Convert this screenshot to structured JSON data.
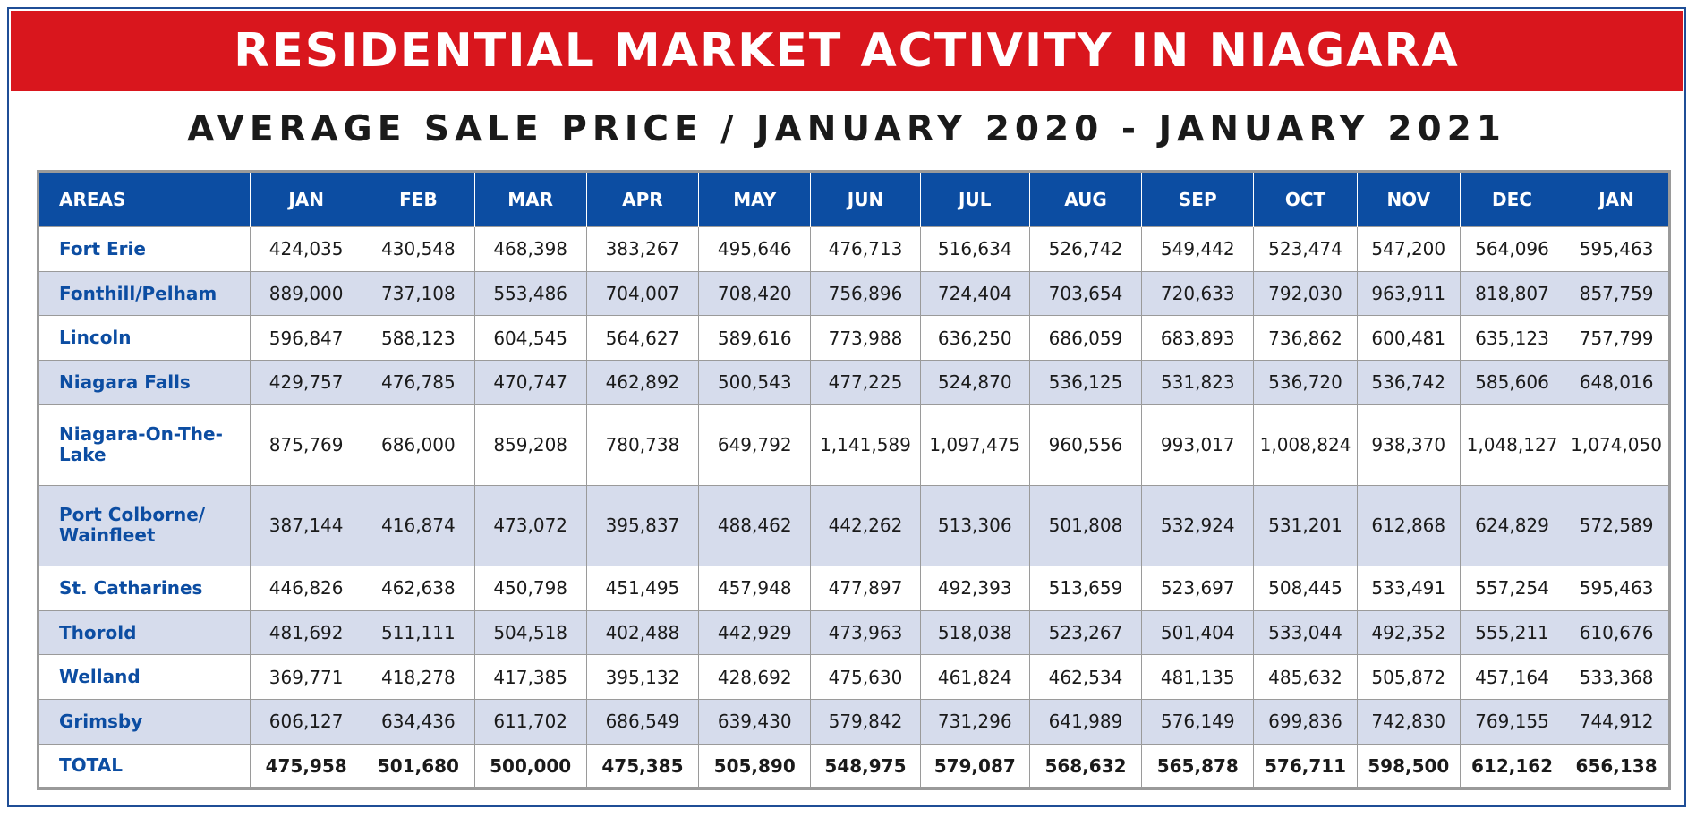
{
  "banner": {
    "title": "RESIDENTIAL MARKET ACTIVITY IN NIAGARA"
  },
  "subtitle": "AVERAGE SALE PRICE / JANUARY 2020 - JANUARY 2021",
  "colors": {
    "banner": "#d9161d",
    "header": "#0c4da2",
    "alt_row": "#d6dcec",
    "area_text": "#0c4da2"
  },
  "table": {
    "headers": [
      "AREAS",
      "JAN",
      "FEB",
      "MAR",
      "APR",
      "MAY",
      "JUN",
      "JUL",
      "AUG",
      "SEP",
      "OCT",
      "NOV",
      "DEC",
      "JAN"
    ],
    "rows": [
      {
        "area": "Fort Erie",
        "values": [
          "424,035",
          "430,548",
          "468,398",
          "383,267",
          "495,646",
          "476,713",
          "516,634",
          "526,742",
          "549,442",
          "523,474",
          "547,200",
          "564,096",
          "595,463"
        ]
      },
      {
        "area": "Fonthill/Pelham",
        "values": [
          "889,000",
          "737,108",
          "553,486",
          "704,007",
          "708,420",
          "756,896",
          "724,404",
          "703,654",
          "720,633",
          "792,030",
          "963,911",
          "818,807",
          "857,759"
        ]
      },
      {
        "area": "Lincoln",
        "values": [
          "596,847",
          "588,123",
          "604,545",
          "564,627",
          "589,616",
          "773,988",
          "636,250",
          "686,059",
          "683,893",
          "736,862",
          "600,481",
          "635,123",
          "757,799"
        ]
      },
      {
        "area": "Niagara Falls",
        "values": [
          "429,757",
          "476,785",
          "470,747",
          "462,892",
          "500,543",
          "477,225",
          "524,870",
          "536,125",
          "531,823",
          "536,720",
          "536,742",
          "585,606",
          "648,016"
        ]
      },
      {
        "area": "Niagara-On-The-Lake",
        "values": [
          "875,769",
          "686,000",
          "859,208",
          "780,738",
          "649,792",
          "1,141,589",
          "1,097,475",
          "960,556",
          "993,017",
          "1,008,824",
          "938,370",
          "1,048,127",
          "1,074,050"
        ]
      },
      {
        "area": "Port Colborne/ Wainfleet",
        "values": [
          "387,144",
          "416,874",
          "473,072",
          "395,837",
          "488,462",
          "442,262",
          "513,306",
          "501,808",
          "532,924",
          "531,201",
          "612,868",
          "624,829",
          "572,589"
        ]
      },
      {
        "area": "St. Catharines",
        "values": [
          "446,826",
          "462,638",
          "450,798",
          "451,495",
          "457,948",
          "477,897",
          "492,393",
          "513,659",
          "523,697",
          "508,445",
          "533,491",
          "557,254",
          "595,463"
        ]
      },
      {
        "area": "Thorold",
        "values": [
          "481,692",
          "511,111",
          "504,518",
          "402,488",
          "442,929",
          "473,963",
          "518,038",
          "523,267",
          "501,404",
          "533,044",
          "492,352",
          "555,211",
          "610,676"
        ]
      },
      {
        "area": "Welland",
        "values": [
          "369,771",
          "418,278",
          "417,385",
          "395,132",
          "428,692",
          "475,630",
          "461,824",
          "462,534",
          "481,135",
          "485,632",
          "505,872",
          "457,164",
          "533,368"
        ]
      },
      {
        "area": "Grimsby",
        "values": [
          "606,127",
          "634,436",
          "611,702",
          "686,549",
          "639,430",
          "579,842",
          "731,296",
          "641,989",
          "576,149",
          "699,836",
          "742,830",
          "769,155",
          "744,912"
        ]
      },
      {
        "area": "TOTAL",
        "values": [
          "475,958",
          "501,680",
          "500,000",
          "475,385",
          "505,890",
          "548,975",
          "579,087",
          "568,632",
          "565,878",
          "576,711",
          "598,500",
          "612,162",
          "656,138"
        ]
      }
    ]
  }
}
